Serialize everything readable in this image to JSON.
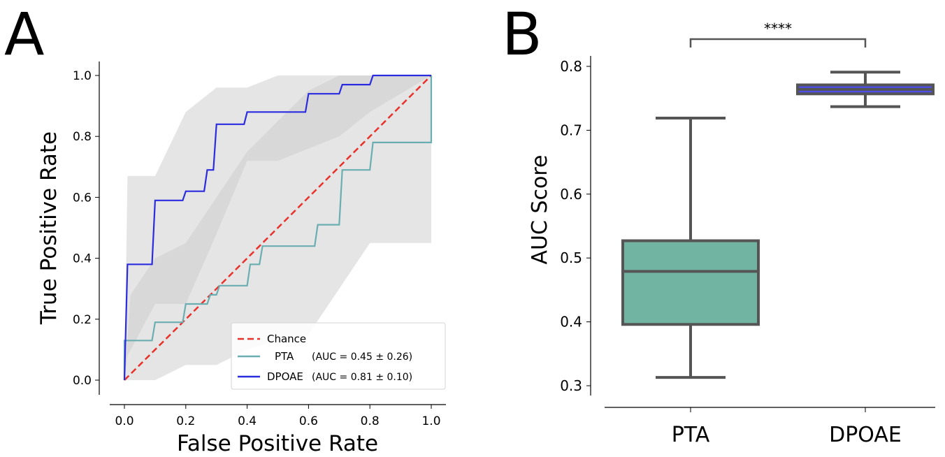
{
  "panels": {
    "a": {
      "letter": "A"
    },
    "b": {
      "letter": "B"
    }
  },
  "chart_data": [
    {
      "type": "line",
      "panel": "A",
      "xlabel": "False Positive Rate",
      "ylabel": "True Positive Rate",
      "xlim": [
        0,
        1
      ],
      "ylim": [
        0,
        1
      ],
      "xticks": [
        "0.0",
        "0.2",
        "0.4",
        "0.6",
        "0.8",
        "1.0"
      ],
      "yticks": [
        "0.0",
        "0.2",
        "0.4",
        "0.6",
        "0.8",
        "1.0"
      ],
      "grid": false,
      "legend_position": "lower-right",
      "legend": [
        {
          "label": "Chance",
          "note": "",
          "color": "#e8312a",
          "dash": true
        },
        {
          "label": "PTA",
          "note": "(AUC = 0.45 ± 0.26)",
          "color": "#6aaeb2",
          "dash": false
        },
        {
          "label": "DPOAE",
          "note": "(AUC = 0.81 ± 0.10)",
          "color": "#2b2be0",
          "dash": false
        }
      ],
      "series": [
        {
          "name": "Chance",
          "color": "#e8312a",
          "dashed": true,
          "x": [
            0,
            1
          ],
          "y": [
            0,
            1
          ]
        },
        {
          "name": "PTA",
          "color": "#6aaeb2",
          "x": [
            0,
            0,
            0.09,
            0.1,
            0.19,
            0.2,
            0.27,
            0.28,
            0.3,
            0.31,
            0.4,
            0.41,
            0.44,
            0.45,
            0.62,
            0.63,
            0.7,
            0.71,
            0.8,
            0.81,
            1.0,
            1.0
          ],
          "y": [
            0,
            0.13,
            0.13,
            0.19,
            0.19,
            0.25,
            0.25,
            0.28,
            0.28,
            0.31,
            0.31,
            0.38,
            0.38,
            0.44,
            0.44,
            0.51,
            0.51,
            0.69,
            0.69,
            0.78,
            0.78,
            1.0
          ]
        },
        {
          "name": "DPOAE",
          "color": "#2b2be0",
          "x": [
            0,
            0.01,
            0.09,
            0.1,
            0.19,
            0.2,
            0.26,
            0.27,
            0.29,
            0.3,
            0.39,
            0.4,
            0.59,
            0.6,
            0.7,
            0.71,
            0.8,
            0.81,
            1.0
          ],
          "y": [
            0,
            0.38,
            0.38,
            0.59,
            0.59,
            0.62,
            0.62,
            0.69,
            0.69,
            0.84,
            0.84,
            0.88,
            0.88,
            0.94,
            0.94,
            0.97,
            0.97,
            1.0,
            1.0
          ]
        }
      ],
      "bands": [
        {
          "name": "PTA",
          "color": "#cccccc",
          "x": [
            0,
            0.02,
            0.1,
            0.2,
            0.3,
            0.4,
            0.5,
            0.6,
            0.7,
            0.8,
            0.9,
            1.0
          ],
          "lower": [
            0,
            0,
            0,
            0.05,
            0.05,
            0.1,
            0.13,
            0.15,
            0.3,
            0.45,
            0.45,
            0.45
          ],
          "upper": [
            0,
            0.28,
            0.4,
            0.45,
            0.6,
            0.75,
            0.85,
            0.95,
            1.0,
            1.0,
            1.0,
            1.0
          ]
        },
        {
          "name": "DPOAE",
          "color": "#cccccc",
          "x": [
            0,
            0.01,
            0.1,
            0.2,
            0.3,
            0.4,
            0.5,
            0.6,
            0.7,
            0.8,
            1.0
          ],
          "lower": [
            0,
            0.08,
            0.25,
            0.25,
            0.48,
            0.72,
            0.72,
            0.76,
            0.8,
            0.88,
            1.0
          ],
          "upper": [
            0,
            0.67,
            0.67,
            0.88,
            0.96,
            0.96,
            1.0,
            1.0,
            1.0,
            1.0,
            1.0
          ]
        }
      ]
    },
    {
      "type": "box",
      "panel": "B",
      "xlabel": "",
      "ylabel": "AUC Score",
      "ylim": [
        0.29,
        0.815
      ],
      "yticks": [
        "0.3",
        "0.4",
        "0.5",
        "0.6",
        "0.7",
        "0.8"
      ],
      "categories": [
        "PTA",
        "DPOAE"
      ],
      "boxes": [
        {
          "name": "PTA",
          "color": "#72b4a2",
          "min": 0.313,
          "q1": 0.396,
          "median": 0.479,
          "q3": 0.527,
          "max": 0.719
        },
        {
          "name": "DPOAE",
          "color": "#4d4de8",
          "min": 0.737,
          "q1": 0.757,
          "median": 0.764,
          "q3": 0.771,
          "max": 0.791
        }
      ],
      "significance": {
        "between": [
          "PTA",
          "DPOAE"
        ],
        "label": "****"
      }
    }
  ]
}
